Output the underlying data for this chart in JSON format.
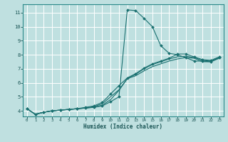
{
  "title": "",
  "xlabel": "Humidex (Indice chaleur)",
  "ylabel": "",
  "bg_color": "#bfe0e0",
  "line_color": "#1a7070",
  "grid_color": "#ffffff",
  "xlim": [
    -0.5,
    23.5
  ],
  "ylim": [
    3.6,
    11.6
  ],
  "yticks": [
    4,
    5,
    6,
    7,
    8,
    9,
    10,
    11
  ],
  "xticks": [
    0,
    1,
    2,
    3,
    4,
    5,
    6,
    7,
    8,
    9,
    10,
    11,
    12,
    13,
    14,
    15,
    16,
    17,
    18,
    19,
    20,
    21,
    22,
    23
  ],
  "lines": [
    {
      "x": [
        0,
        1,
        2,
        3,
        4,
        5,
        6,
        7,
        8,
        9,
        10,
        11,
        12,
        13,
        14,
        15,
        16,
        17,
        18,
        19,
        20,
        21,
        22,
        23
      ],
      "y": [
        4.15,
        3.75,
        3.9,
        4.0,
        4.05,
        4.1,
        4.15,
        4.2,
        4.25,
        4.35,
        4.65,
        5.0,
        11.2,
        11.15,
        10.6,
        10.0,
        8.65,
        8.1,
        8.0,
        7.8,
        7.55,
        7.55,
        7.5,
        7.8
      ],
      "marker": true
    },
    {
      "x": [
        0,
        1,
        2,
        3,
        4,
        5,
        6,
        7,
        8,
        9,
        10,
        11,
        12,
        13,
        14,
        15,
        16,
        17,
        18,
        19,
        20,
        21,
        22,
        23
      ],
      "y": [
        4.15,
        3.75,
        3.9,
        4.0,
        4.05,
        4.1,
        4.15,
        4.2,
        4.25,
        4.4,
        4.8,
        5.45,
        6.3,
        6.5,
        6.85,
        7.15,
        7.35,
        7.55,
        7.7,
        7.8,
        7.75,
        7.5,
        7.5,
        7.75
      ],
      "marker": false
    },
    {
      "x": [
        0,
        1,
        2,
        3,
        4,
        5,
        6,
        7,
        8,
        9,
        10,
        11,
        12,
        13,
        14,
        15,
        16,
        17,
        18,
        19,
        20,
        21,
        22,
        23
      ],
      "y": [
        4.15,
        3.75,
        3.9,
        4.0,
        4.05,
        4.1,
        4.15,
        4.2,
        4.3,
        4.5,
        5.0,
        5.5,
        6.3,
        6.6,
        7.0,
        7.3,
        7.5,
        7.7,
        7.85,
        7.9,
        7.8,
        7.6,
        7.55,
        7.8
      ],
      "marker": false
    },
    {
      "x": [
        0,
        1,
        2,
        3,
        4,
        5,
        6,
        7,
        8,
        9,
        10,
        11,
        12,
        13,
        14,
        15,
        16,
        17,
        18,
        19,
        20,
        21,
        22,
        23
      ],
      "y": [
        4.15,
        3.75,
        3.9,
        4.0,
        4.05,
        4.1,
        4.15,
        4.25,
        4.35,
        4.6,
        5.2,
        5.8,
        6.35,
        6.65,
        7.05,
        7.35,
        7.55,
        7.75,
        8.05,
        8.05,
        7.85,
        7.65,
        7.6,
        7.85
      ],
      "marker": true
    }
  ]
}
